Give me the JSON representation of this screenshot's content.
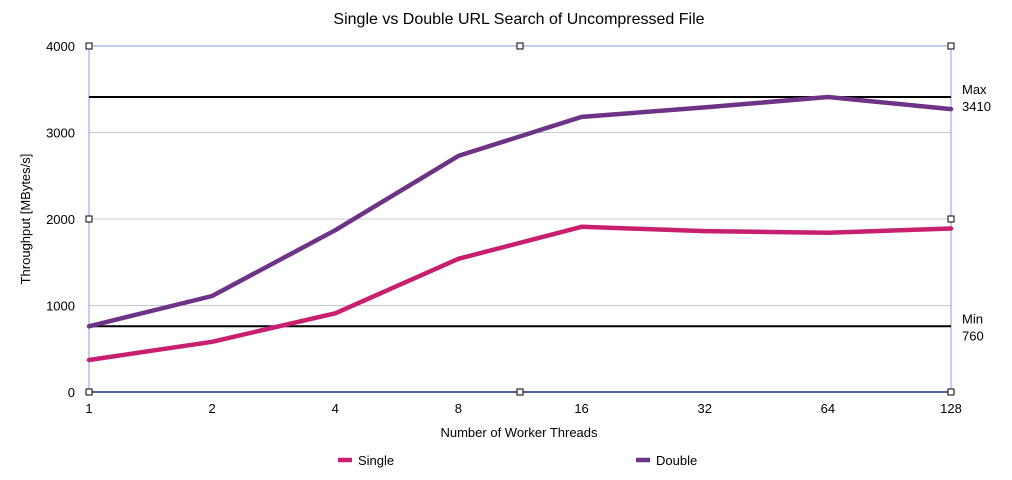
{
  "chart_data": {
    "type": "line",
    "title": "Single vs Double URL Search of Uncompressed File",
    "xlabel": "Number of Worker Threads",
    "ylabel": "Throughput [MBytes/s]",
    "categories": [
      "1",
      "2",
      "4",
      "8",
      "16",
      "32",
      "64",
      "128"
    ],
    "ylim": [
      0,
      4000
    ],
    "yticks": [
      "0",
      "1000",
      "2000",
      "3000",
      "4000"
    ],
    "grid": true,
    "legend_position": "bottom",
    "series": [
      {
        "name": "Single",
        "color": "#c8206e",
        "values": [
          370,
          580,
          910,
          1540,
          1910,
          1860,
          1840,
          1890
        ]
      },
      {
        "name": "Double",
        "color": "#6e3387",
        "values": [
          760,
          1110,
          1870,
          2730,
          3180,
          3290,
          3410,
          3270
        ]
      }
    ],
    "reference_lines": [
      {
        "label_top": "Max",
        "label_bottom": "3410",
        "value": 3410,
        "color": "#000000"
      },
      {
        "label_top": "Min",
        "label_bottom": "760",
        "value": 760,
        "color": "#000000"
      }
    ],
    "grid_color": "#c8c8dc",
    "frame_color": "#8898e0"
  }
}
